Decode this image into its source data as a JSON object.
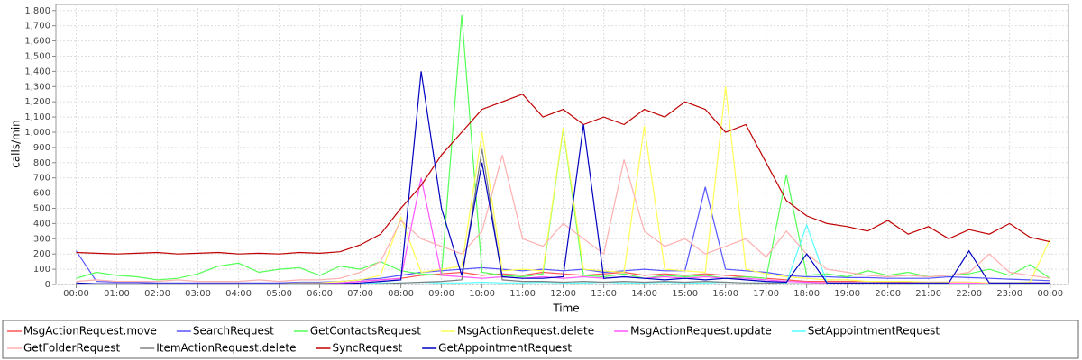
{
  "chart_data": {
    "type": "line",
    "x_label": "Time",
    "y_label": "calls/min",
    "x": [
      0,
      0.5,
      1,
      1.5,
      2,
      2.5,
      3,
      3.5,
      4,
      4.5,
      5,
      5.5,
      6,
      6.5,
      7,
      7.5,
      8,
      8.5,
      9,
      9.5,
      10,
      10.5,
      11,
      11.5,
      12,
      12.5,
      13,
      13.5,
      14,
      14.5,
      15,
      15.5,
      16,
      16.5,
      17,
      17.5,
      18,
      18.5,
      19,
      19.5,
      20,
      20.5,
      21,
      21.5,
      22,
      22.5,
      23,
      23.5,
      24
    ],
    "xlim": [
      -0.5,
      24.45
    ],
    "xticks": [
      {
        "value": 0,
        "label": "00:00"
      },
      {
        "value": 1,
        "label": "01:00"
      },
      {
        "value": 2,
        "label": "02:00"
      },
      {
        "value": 3,
        "label": "03:00"
      },
      {
        "value": 4,
        "label": "04:00"
      },
      {
        "value": 5,
        "label": "05:00"
      },
      {
        "value": 6,
        "label": "06:00"
      },
      {
        "value": 7,
        "label": "07:00"
      },
      {
        "value": 8,
        "label": "08:00"
      },
      {
        "value": 9,
        "label": "09:00"
      },
      {
        "value": 10,
        "label": "10:00"
      },
      {
        "value": 11,
        "label": "11:00"
      },
      {
        "value": 12,
        "label": "12:00"
      },
      {
        "value": 13,
        "label": "13:00"
      },
      {
        "value": 14,
        "label": "14:00"
      },
      {
        "value": 15,
        "label": "15:00"
      },
      {
        "value": 16,
        "label": "16:00"
      },
      {
        "value": 17,
        "label": "17:00"
      },
      {
        "value": 18,
        "label": "18:00"
      },
      {
        "value": 19,
        "label": "19:00"
      },
      {
        "value": 20,
        "label": "20:00"
      },
      {
        "value": 21,
        "label": "21:00"
      },
      {
        "value": 22,
        "label": "22:00"
      },
      {
        "value": 23,
        "label": "23:00"
      },
      {
        "value": 24,
        "label": "00:00"
      }
    ],
    "ylim": [
      0,
      1840
    ],
    "yticks": [
      0,
      100,
      200,
      300,
      400,
      500,
      600,
      700,
      800,
      900,
      {
        "value": 1000,
        "label": "1,000"
      },
      {
        "value": 1100,
        "label": "1,100"
      },
      {
        "value": 1200,
        "label": "1,200"
      },
      {
        "value": 1300,
        "label": "1,300"
      },
      {
        "value": 1400,
        "label": "1,400"
      },
      {
        "value": 1500,
        "label": "1,500"
      },
      {
        "value": 1600,
        "label": "1,600"
      },
      {
        "value": 1700,
        "label": "1,700"
      },
      {
        "value": 1800,
        "label": "1,800"
      }
    ],
    "grid": true,
    "legend": "bottom",
    "series": [
      {
        "name": "MsgActionRequest.move",
        "color": "#ff5555",
        "values": [
          5,
          5,
          5,
          5,
          5,
          5,
          5,
          5,
          5,
          5,
          5,
          5,
          5,
          10,
          20,
          30,
          40,
          60,
          70,
          80,
          60,
          70,
          60,
          80,
          70,
          60,
          70,
          80,
          60,
          70,
          60,
          70,
          60,
          50,
          40,
          30,
          20,
          20,
          20,
          20,
          15,
          15,
          15,
          15,
          15,
          10,
          10,
          10,
          10
        ]
      },
      {
        "name": "SearchRequest",
        "color": "#5555ff",
        "values": [
          220,
          20,
          15,
          15,
          10,
          10,
          10,
          10,
          10,
          10,
          10,
          15,
          15,
          20,
          30,
          40,
          60,
          80,
          90,
          100,
          110,
          100,
          90,
          100,
          90,
          100,
          80,
          90,
          100,
          90,
          90,
          640,
          100,
          90,
          80,
          60,
          50,
          50,
          45,
          45,
          40,
          40,
          40,
          50,
          45,
          40,
          35,
          30,
          25
        ]
      },
      {
        "name": "GetContactsRequest",
        "color": "#55ff55",
        "values": [
          40,
          80,
          60,
          50,
          30,
          40,
          70,
          120,
          140,
          80,
          100,
          110,
          60,
          120,
          100,
          150,
          90,
          70,
          60,
          1770,
          80,
          60,
          50,
          70,
          1020,
          60,
          50,
          70,
          40,
          60,
          50,
          60,
          40,
          50,
          40,
          720,
          60,
          70,
          50,
          90,
          60,
          80,
          50,
          60,
          70,
          100,
          60,
          130,
          40
        ]
      },
      {
        "name": "MsgActionRequest.delete",
        "color": "#ffff55",
        "values": [
          5,
          5,
          5,
          5,
          5,
          5,
          5,
          5,
          5,
          5,
          5,
          10,
          10,
          20,
          30,
          60,
          440,
          80,
          100,
          120,
          1000,
          90,
          100,
          90,
          1030,
          100,
          90,
          80,
          1040,
          100,
          90,
          80,
          1300,
          100,
          70,
          50,
          40,
          30,
          30,
          20,
          20,
          20,
          15,
          15,
          15,
          10,
          10,
          15,
          300
        ]
      },
      {
        "name": "MsgActionRequest.update",
        "color": "#ff55ff",
        "values": [
          2,
          2,
          2,
          2,
          2,
          2,
          2,
          2,
          2,
          2,
          2,
          5,
          5,
          10,
          20,
          30,
          40,
          700,
          60,
          50,
          40,
          50,
          40,
          50,
          40,
          50,
          40,
          50,
          40,
          50,
          40,
          50,
          40,
          40,
          30,
          20,
          15,
          10,
          10,
          10,
          10,
          10,
          10,
          10,
          10,
          5,
          5,
          5,
          5
        ]
      },
      {
        "name": "SetAppointmentRequest",
        "color": "#55ffff",
        "values": [
          2,
          2,
          2,
          2,
          2,
          2,
          2,
          2,
          2,
          2,
          2,
          2,
          2,
          2,
          5,
          10,
          10,
          15,
          10,
          10,
          15,
          10,
          10,
          15,
          10,
          10,
          15,
          10,
          10,
          15,
          10,
          10,
          15,
          10,
          10,
          10,
          390,
          10,
          5,
          5,
          5,
          2,
          2,
          2,
          2,
          2,
          2,
          2,
          2
        ]
      },
      {
        "name": "GetFolderRequest",
        "color": "#ffafaf",
        "values": [
          20,
          30,
          20,
          20,
          20,
          30,
          20,
          20,
          20,
          30,
          20,
          30,
          30,
          40,
          80,
          150,
          420,
          300,
          250,
          200,
          350,
          850,
          300,
          250,
          400,
          300,
          200,
          820,
          350,
          250,
          300,
          200,
          250,
          300,
          180,
          350,
          200,
          100,
          80,
          60,
          50,
          60,
          50,
          60,
          80,
          200,
          80,
          60,
          40
        ]
      },
      {
        "name": "ItemActionRequest.delete",
        "color": "#808080",
        "values": [
          1,
          1,
          1,
          1,
          1,
          1,
          1,
          1,
          1,
          1,
          1,
          1,
          1,
          1,
          2,
          5,
          10,
          15,
          20,
          30,
          890,
          30,
          20,
          20,
          15,
          20,
          15,
          20,
          15,
          20,
          15,
          20,
          15,
          10,
          10,
          5,
          5,
          5,
          5,
          5,
          2,
          2,
          2,
          2,
          2,
          2,
          2,
          2,
          2
        ]
      },
      {
        "name": "SyncRequest",
        "color": "#c00000",
        "values": [
          210,
          205,
          200,
          205,
          210,
          200,
          205,
          210,
          200,
          205,
          200,
          210,
          205,
          215,
          260,
          330,
          500,
          650,
          850,
          1000,
          1150,
          1200,
          1250,
          1100,
          1150,
          1050,
          1100,
          1050,
          1150,
          1100,
          1200,
          1150,
          1000,
          1050,
          800,
          550,
          450,
          400,
          380,
          350,
          420,
          330,
          380,
          300,
          360,
          330,
          400,
          310,
          280
        ]
      },
      {
        "name": "GetAppointmentRequest",
        "color": "#0000c0",
        "values": [
          10,
          5,
          5,
          5,
          5,
          5,
          5,
          5,
          5,
          5,
          5,
          5,
          5,
          5,
          10,
          20,
          30,
          1400,
          500,
          60,
          800,
          50,
          40,
          40,
          50,
          1050,
          40,
          50,
          40,
          30,
          40,
          30,
          40,
          30,
          20,
          15,
          200,
          10,
          10,
          10,
          10,
          10,
          10,
          10,
          220,
          10,
          10,
          10,
          10
        ]
      }
    ]
  }
}
